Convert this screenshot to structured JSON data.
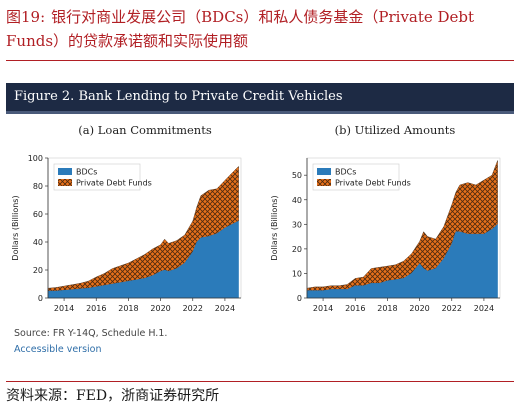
{
  "caption": {
    "number": "图19:",
    "text": "银行对商业发展公司（BDCs）和私人债务基金（Private Debt Funds）的贷款承诺额和实际使用额"
  },
  "figure_title": "Figure 2. Bank Lending to Private Credit Vehicles",
  "source": "Source: FR Y-14Q, Schedule H.1.",
  "accessible_link": "Accessible version",
  "footer": "资料来源：FED，浙商证券研究所",
  "colors": {
    "bdc": "#2b7bba",
    "pdf": "#e8701a",
    "hatch": "#4a2a10",
    "caption": "#b11f24",
    "banner": "#1d2a44"
  },
  "chart_data": [
    {
      "type": "area",
      "stacked": true,
      "title": "(a) Loan Commitments",
      "ylabel": "Dollars (Billions)",
      "xlabel": "",
      "xlim": [
        2013,
        2025
      ],
      "ylim": [
        0,
        100
      ],
      "xticks": [
        2014,
        2016,
        2018,
        2020,
        2022,
        2024
      ],
      "yticks": [
        0,
        20,
        40,
        60,
        80,
        100
      ],
      "legend": "top-left",
      "x": [
        2013.0,
        2013.5,
        2014.0,
        2014.5,
        2015.0,
        2015.5,
        2016.0,
        2016.5,
        2017.0,
        2017.5,
        2018.0,
        2018.5,
        2019.0,
        2019.5,
        2020.0,
        2020.25,
        2020.5,
        2021.0,
        2021.5,
        2022.0,
        2022.25,
        2022.5,
        2023.0,
        2023.5,
        2024.0,
        2024.5,
        2024.85
      ],
      "series": [
        {
          "name": "BDCs",
          "values": [
            5,
            5,
            5.5,
            6,
            6.5,
            7,
            8,
            9,
            10,
            11,
            12,
            13,
            14,
            16,
            19,
            20,
            19,
            21,
            25,
            33,
            40,
            43,
            44,
            46,
            50,
            53,
            55
          ]
        },
        {
          "name": "Private Debt Funds",
          "values": [
            2,
            2.5,
            3,
            3.5,
            4,
            5,
            7,
            8.5,
            11,
            12,
            13,
            15,
            17,
            19,
            19,
            22,
            20,
            20,
            20,
            22,
            25,
            30,
            33,
            32,
            34,
            37,
            39
          ]
        }
      ]
    },
    {
      "type": "area",
      "stacked": true,
      "title": "(b) Utilized Amounts",
      "ylabel": "Dollars (Billions)",
      "xlabel": "",
      "xlim": [
        2013,
        2025
      ],
      "ylim": [
        0,
        57
      ],
      "xticks": [
        2014,
        2016,
        2018,
        2020,
        2022,
        2024
      ],
      "yticks": [
        0,
        10,
        20,
        30,
        40,
        50
      ],
      "legend": "top-left",
      "x": [
        2013.0,
        2013.5,
        2014.0,
        2014.5,
        2015.0,
        2015.5,
        2016.0,
        2016.5,
        2017.0,
        2017.5,
        2018.0,
        2018.5,
        2019.0,
        2019.5,
        2020.0,
        2020.25,
        2020.5,
        2021.0,
        2021.5,
        2022.0,
        2022.25,
        2022.5,
        2023.0,
        2023.5,
        2024.0,
        2024.5,
        2024.85
      ],
      "series": [
        {
          "name": "BDCs",
          "values": [
            3,
            3,
            3,
            3.5,
            3.5,
            3.5,
            5,
            5,
            6,
            6,
            7,
            7.5,
            8,
            10,
            14,
            12,
            11,
            12,
            16,
            22,
            27,
            27,
            26,
            26,
            26,
            28,
            30
          ]
        },
        {
          "name": "Private Debt Funds",
          "values": [
            1,
            1.5,
            1.5,
            1.5,
            1.5,
            2,
            3,
            3.5,
            6,
            6.5,
            6,
            6,
            7,
            8,
            9,
            15,
            14,
            12,
            13,
            16,
            16,
            19,
            21,
            20,
            22,
            22,
            26
          ]
        }
      ]
    }
  ]
}
